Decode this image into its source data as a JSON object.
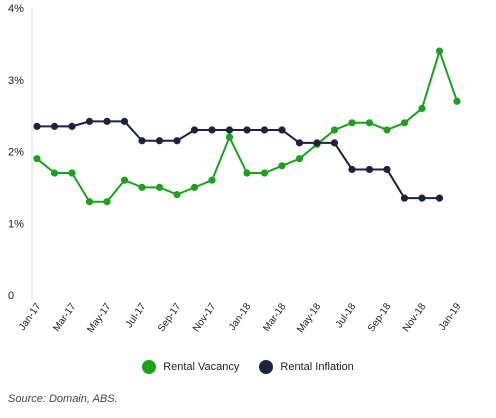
{
  "chart_data": {
    "type": "line",
    "categories": [
      "Jan-17",
      "Feb-17",
      "Mar-17",
      "Apr-17",
      "May-17",
      "Jun-17",
      "Jul-17",
      "Aug-17",
      "Sep-17",
      "Oct-17",
      "Nov-17",
      "Dec-17",
      "Jan-18",
      "Feb-18",
      "Mar-18",
      "Apr-18",
      "May-18",
      "Jun-18",
      "Jul-18",
      "Aug-18",
      "Sep-18",
      "Oct-18",
      "Nov-18",
      "Dec-18",
      "Jan-19"
    ],
    "tick_labels": [
      "Jan-17",
      "Mar-17",
      "May-17",
      "Jul-17",
      "Sep-17",
      "Nov-17",
      "Jan-18",
      "Mar-18",
      "May-18",
      "Jul-18",
      "Sep-18",
      "Nov-18",
      "Jan-19"
    ],
    "y_ticks": [
      "0",
      "1%",
      "2%",
      "3%",
      "4%"
    ],
    "ylim": [
      0,
      4
    ],
    "series": [
      {
        "name": "Rental Vacancy",
        "color": "#1aa31a",
        "values": [
          1.9,
          1.7,
          1.7,
          1.3,
          1.3,
          1.6,
          1.5,
          1.5,
          1.4,
          1.5,
          1.6,
          2.2,
          1.7,
          1.7,
          1.8,
          1.9,
          2.1,
          2.3,
          2.4,
          2.4,
          2.3,
          2.4,
          2.6,
          3.4,
          2.7
        ]
      },
      {
        "name": "Rental Inflation",
        "color": "#1c2340",
        "values": [
          2.35,
          2.35,
          2.35,
          2.42,
          2.42,
          2.42,
          2.15,
          2.15,
          2.15,
          2.3,
          2.3,
          2.3,
          2.3,
          2.3,
          2.3,
          2.12,
          2.12,
          2.12,
          1.75,
          1.75,
          1.75,
          1.35,
          1.35,
          1.35,
          null
        ]
      }
    ],
    "legend_position": "bottom-center",
    "grid": false
  },
  "source": "Source: Domain, ABS."
}
